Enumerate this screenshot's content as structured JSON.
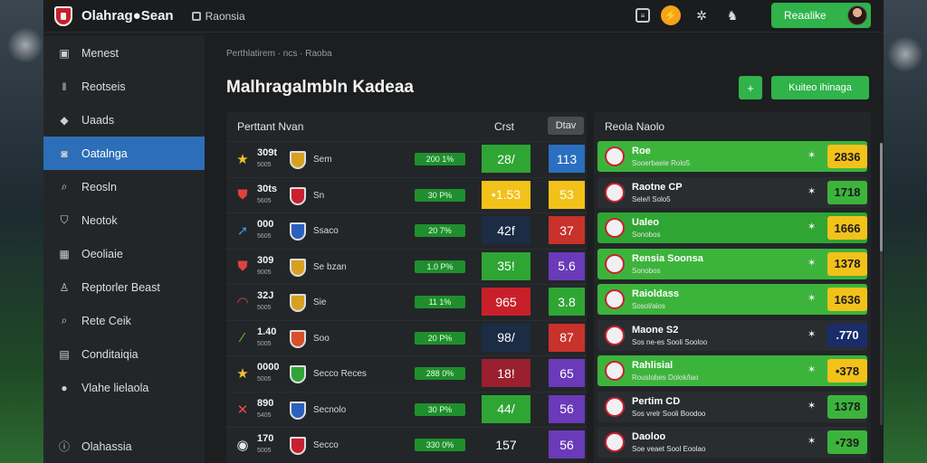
{
  "topbar": {
    "app_title": "Olahrag●Sean",
    "link": "Raonsia",
    "profile_label": "Reaalike",
    "icons": [
      "square-icon",
      "bolt-icon",
      "kit-icon",
      "user-icon"
    ]
  },
  "sidebar": {
    "items": [
      {
        "label": "Menest",
        "icon": "square-icon"
      },
      {
        "label": "Reotseis",
        "icon": "bars-icon"
      },
      {
        "label": "Uaads",
        "icon": "tag-icon"
      },
      {
        "label": "Oatalnga",
        "icon": "chat-icon",
        "active": true
      },
      {
        "label": "Reosln",
        "icon": "search-icon"
      },
      {
        "label": "Neotok",
        "icon": "shield-icon"
      },
      {
        "label": "Oeoliaie",
        "icon": "grid-icon"
      },
      {
        "label": "Reptorler Beast",
        "icon": "person-icon"
      },
      {
        "label": "Rete Ceik",
        "icon": "search-icon"
      },
      {
        "label": "Conditaiqia",
        "icon": "chart-icon"
      },
      {
        "label": "Vlahe lielaola",
        "icon": "ball-icon"
      }
    ],
    "bottom": {
      "label": "Olahassia",
      "icon": "info-icon"
    }
  },
  "main": {
    "breadcrumb": "Perthlatirem · ncs · Raoba",
    "title": "Malhragalmbln Kadeaa",
    "add_label": "+",
    "action_label": "Kuiteo ihinaga",
    "left_table": {
      "headers": [
        "Perttant Nvan",
        "Crst",
        "Dtav"
      ],
      "rows": [
        {
          "icon": "star-icon",
          "icon_color": "#f2c230",
          "stat": "309t",
          "sub": "5005",
          "team": "Sem",
          "crest": "#d8a020",
          "pct": "200 1%",
          "v1": "28/",
          "v1bg": "#2fa534",
          "v2": "113",
          "v2bg": "#2a6fc0"
        },
        {
          "icon": "crest-icon",
          "icon_color": "#e24040",
          "stat": "30ts",
          "sub": "5605",
          "team": "Sn",
          "crest": "#c82030",
          "pct": "30 P%",
          "v1": "•1.53",
          "v1bg": "#f2c21a",
          "v2": "53",
          "v2bg": "#f2c21a"
        },
        {
          "icon": "arrow-icon",
          "icon_color": "#3a8ee0",
          "stat": "000",
          "sub": "5605",
          "team": "Ssaco",
          "crest": "#2a60c0",
          "pct": "20 7%",
          "v1": "42f",
          "v1bg": "#1b2c44",
          "v2": "37",
          "v2bg": "#c8322a"
        },
        {
          "icon": "crest-icon",
          "icon_color": "#e24040",
          "stat": "309",
          "sub": "9005",
          "team": "Se bzan",
          "crest": "#d8a020",
          "pct": "1.0 P%",
          "v1": "35!",
          "v1bg": "#2fa534",
          "v2": "5.6",
          "v2bg": "#6a3ab8"
        },
        {
          "icon": "lips-icon",
          "icon_color": "#e24040",
          "stat": "32J",
          "sub": "5005",
          "team": "Sie",
          "crest": "#d8a020",
          "pct": "11 1%",
          "v1": "965",
          "v1bg": "#c8202a",
          "v2": "3.8",
          "v2bg": "#2fa534"
        },
        {
          "icon": "slash-icon",
          "icon_color": "#66cc33",
          "stat": "1.40",
          "sub": "5005",
          "team": "Soo",
          "crest": "#d8502a",
          "pct": "20 P%",
          "v1": "98/",
          "v1bg": "#1b2c44",
          "v2": "87",
          "v2bg": "#c8322a"
        },
        {
          "icon": "star-icon",
          "icon_color": "#f2c230",
          "stat": "0000",
          "sub": "5005",
          "team": "Secco Reces",
          "crest": "#2fa534",
          "pct": "288 0%",
          "v1": "18!",
          "v1bg": "#9a2030",
          "v2": "65",
          "v2bg": "#6a3ab8"
        },
        {
          "icon": "x-icon",
          "icon_color": "#e84a4a",
          "stat": "890",
          "sub": "5405",
          "team": "Secnolo",
          "crest": "#2a60c0",
          "pct": "30 P%",
          "v1": "44/",
          "v1bg": "#2fa534",
          "v2": "56",
          "v2bg": "#6a3ab8"
        },
        {
          "icon": "ball-icon",
          "icon_color": "#e6e6e6",
          "stat": "170",
          "sub": "5005",
          "team": "Secco",
          "crest": "#c82030",
          "pct": "330 0%",
          "v1": "157",
          "v1bg": "#232628",
          "v2": "56",
          "v2bg": "#6a3ab8"
        }
      ]
    },
    "right_list": {
      "header": "Reola Naolo",
      "rows": [
        {
          "name": "Roe",
          "sub": "Sooerbaeie Rolo5",
          "odds": "2836",
          "bg": "green",
          "odds_bg": "#f2c21a"
        },
        {
          "name": "Raotne CP",
          "sub": "Sele/l Solo5",
          "odds": "1718",
          "bg": "dark",
          "odds_bg": "#3cb43c"
        },
        {
          "name": "Ualeo",
          "sub": "Sonobos",
          "odds": "1666",
          "bg": "green2",
          "odds_bg": "#f2c21a"
        },
        {
          "name": "Rensia Soonsa",
          "sub": "Sonobos",
          "odds": "1378",
          "bg": "green",
          "odds_bg": "#f2c21a"
        },
        {
          "name": "Raioldass",
          "sub": "Sosol/aios",
          "odds": "1636",
          "bg": "green",
          "odds_bg": "#f2c21a"
        },
        {
          "name": "Maone S2",
          "sub": "Sos ne-es Sooli Sooloo",
          "odds": ".770",
          "bg": "dark",
          "odds_bg": "#1b2c6a"
        },
        {
          "name": "Rahlisial",
          "sub": "Rouslobes Dolok/lao",
          "odds": "•378",
          "bg": "green",
          "odds_bg": "#f2c21a"
        },
        {
          "name": "Pertim CD",
          "sub": "Sos vrelr Sooli Boodoo",
          "odds": "1378",
          "bg": "dark",
          "odds_bg": "#3cb43c"
        },
        {
          "name": "Daoloo",
          "sub": "Soe veaet Sool Eoolao",
          "odds": "•739",
          "bg": "dark",
          "odds_bg": "#3cb43c"
        }
      ]
    }
  }
}
